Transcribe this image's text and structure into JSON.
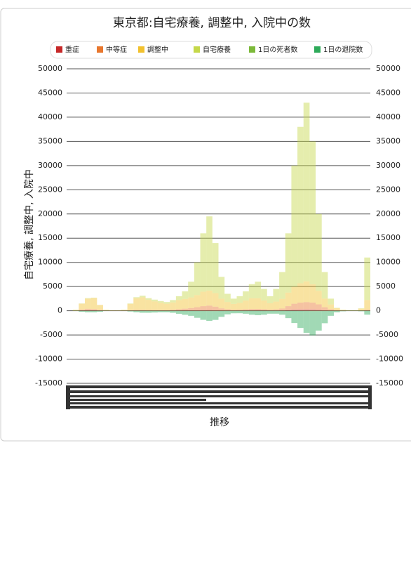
{
  "chart_data": {
    "type": "bar",
    "stacked": true,
    "title": "東京都:自宅療養, 調整中, 入院中の数",
    "y_label": "自宅療養, 調整中, 入院中",
    "x_label": "推移",
    "categories": [
      null,
      null,
      null,
      null,
      null,
      null,
      null,
      null,
      null,
      null,
      null,
      null,
      null,
      null,
      null,
      null,
      null,
      null,
      null,
      null,
      null,
      null,
      null,
      null,
      null,
      null,
      null,
      null,
      null,
      null,
      null,
      null,
      null,
      null,
      null,
      null,
      null,
      null,
      null,
      null,
      null,
      null,
      null,
      null,
      null,
      null,
      null,
      null,
      null,
      null
    ],
    "series": [
      {
        "name": "重症",
        "color": "#c62828",
        "values": [
          0,
          5,
          60,
          100,
          90,
          40,
          10,
          5,
          5,
          10,
          20,
          30,
          30,
          25,
          20,
          20,
          25,
          40,
          60,
          80,
          100,
          130,
          150,
          160,
          140,
          90,
          60,
          40,
          40,
          50,
          60,
          70,
          60,
          40,
          40,
          60,
          150,
          250,
          270,
          280,
          270,
          220,
          120,
          50,
          20,
          10,
          5,
          5,
          5,
          20
        ]
      },
      {
        "name": "中等症",
        "color": "#e8772e",
        "values": [
          0,
          20,
          200,
          300,
          250,
          150,
          40,
          20,
          20,
          40,
          100,
          150,
          150,
          130,
          120,
          110,
          120,
          180,
          250,
          350,
          450,
          600,
          800,
          900,
          700,
          400,
          250,
          180,
          200,
          250,
          300,
          300,
          250,
          200,
          250,
          400,
          800,
          1200,
          1400,
          1500,
          1400,
          1100,
          600,
          250,
          100,
          50,
          20,
          20,
          30,
          200
        ]
      },
      {
        "name": "調整中",
        "color": "#f2c12e",
        "values": [
          0,
          170,
          1200,
          2100,
          2300,
          1000,
          150,
          75,
          75,
          150,
          1300,
          2400,
          2600,
          2100,
          1800,
          1500,
          1300,
          1500,
          1900,
          2000,
          2200,
          2500,
          3000,
          3100,
          2800,
          2000,
          1500,
          1200,
          1400,
          1800,
          2200,
          2200,
          1800,
          1300,
          1600,
          2000,
          2800,
          3500,
          4000,
          4300,
          3800,
          2800,
          1800,
          1000,
          400,
          140,
          75,
          75,
          400,
          2000
        ]
      },
      {
        "name": "自宅療養",
        "color": "#c5d84a",
        "values": [
          0,
          5,
          40,
          100,
          60,
          10,
          0,
          0,
          0,
          0,
          80,
          220,
          320,
          345,
          360,
          370,
          355,
          480,
          790,
          1570,
          3250,
          6770,
          12050,
          15340,
          10360,
          4510,
          1690,
          1080,
          1360,
          1900,
          2940,
          3430,
          2390,
          1460,
          2610,
          5540,
          12250,
          25050,
          32330,
          36920,
          29530,
          15880,
          5480,
          1200,
          80,
          0,
          0,
          0,
          65,
          8780
        ]
      },
      {
        "name": "1日の死者数",
        "color": "#7cb93a",
        "values": [
          0,
          0,
          -10,
          -20,
          -20,
          -10,
          0,
          0,
          0,
          0,
          -5,
          -10,
          -15,
          -20,
          -20,
          -15,
          -15,
          -20,
          -30,
          -40,
          -50,
          -60,
          -80,
          -90,
          -90,
          -60,
          -40,
          -30,
          -20,
          -20,
          -20,
          -20,
          -20,
          -10,
          -10,
          -20,
          -30,
          -40,
          -60,
          -80,
          -100,
          -100,
          -80,
          -50,
          -20,
          -10,
          -5,
          -5,
          -5,
          -10
        ]
      },
      {
        "name": "1日の退院数",
        "color": "#2eaa5a",
        "values": [
          0,
          -50,
          -200,
          -300,
          -300,
          -200,
          -50,
          -20,
          -20,
          -40,
          -150,
          -300,
          -400,
          -400,
          -350,
          -300,
          -300,
          -400,
          -600,
          -800,
          -1000,
          -1400,
          -1800,
          -2000,
          -1800,
          -1200,
          -700,
          -500,
          -500,
          -600,
          -800,
          -900,
          -800,
          -600,
          -600,
          -800,
          -1500,
          -2500,
          -3500,
          -4500,
          -5000,
          -4000,
          -2500,
          -1000,
          -300,
          -100,
          -50,
          -50,
          -100,
          -800
        ]
      }
    ],
    "ylim": [
      -15000,
      50000
    ],
    "yticks": [
      -15000,
      -10000,
      -5000,
      0,
      5000,
      10000,
      15000,
      20000,
      25000,
      30000,
      35000,
      40000,
      45000,
      50000
    ],
    "grid": true
  }
}
